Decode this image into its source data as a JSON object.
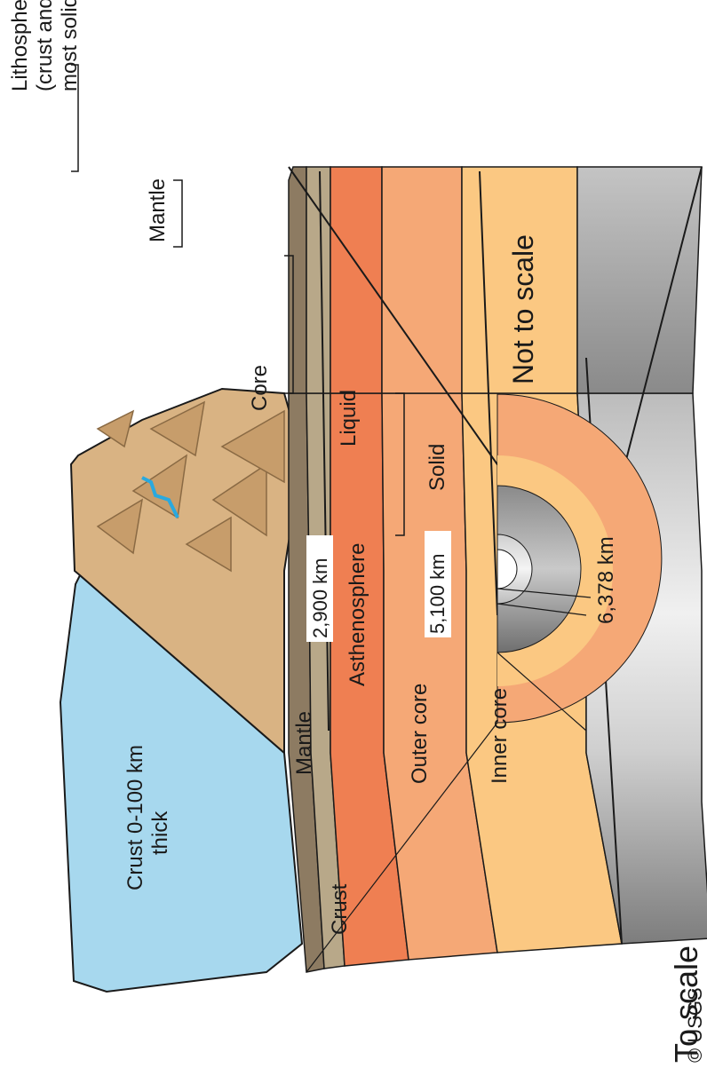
{
  "labels": {
    "lithosphere": "Lithosphere",
    "lithosphere_sub1": "(crust and upper-",
    "lithosphere_sub2": "most solid mantle)",
    "mantle_top": "Mantle",
    "core_top": "Core",
    "not_to_scale": "Not to scale",
    "liquid": "Liquid",
    "solid": "Solid",
    "asthenosphere": "Asthenosphere",
    "depth_2900": "2,900 km",
    "depth_5100": "5,100 km",
    "depth_6378": "6,378 km",
    "crust_thickness_1": "Crust 0-100 km",
    "crust_thickness_2": "thick",
    "mantle": "Mantle",
    "outer_core": "Outer core",
    "inner_core": "Inner core",
    "crust": "Crust",
    "to_scale": "To scale",
    "credit": "© USGS"
  },
  "colors": {
    "ocean": "#a7d8ee",
    "ocean_surface": "#29a9df",
    "land": "#d9b383",
    "lithosphere": "#b8a889",
    "asthenosphere": "#ef7f52",
    "mid_mantle": "#f5a876",
    "lower_mantle": "#fbc882",
    "outer_core": "#9a9a9a",
    "inner_core": "#d6d6d6"
  }
}
